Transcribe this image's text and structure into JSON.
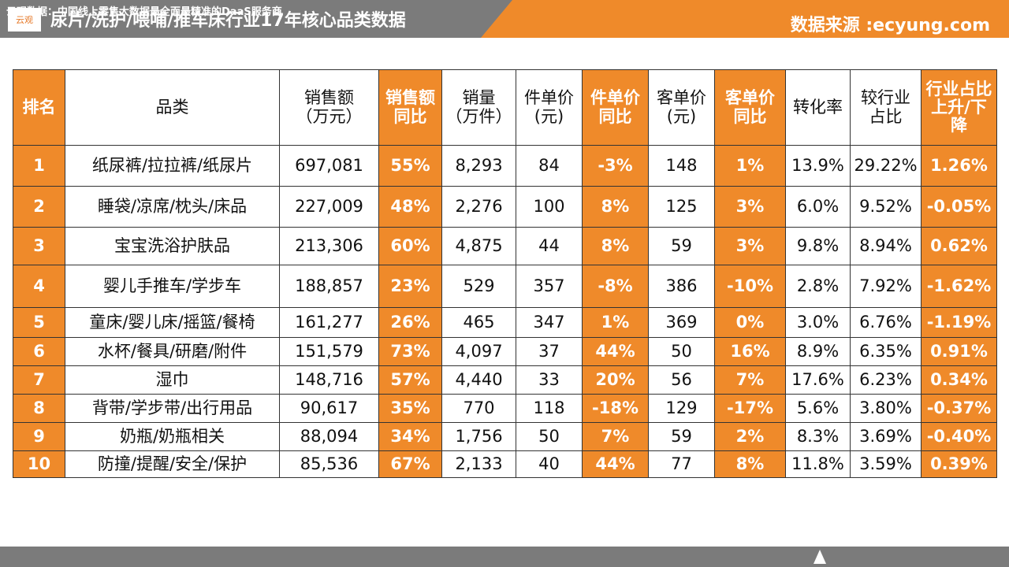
{
  "header": {
    "logo": "云观",
    "title": "尿片/洗护/喂哺/推车床行业17年核心品类数据",
    "source": "数据来源 :ecyung.com"
  },
  "table": {
    "columns": [
      "排名",
      "品类",
      "销售额\n（万元）",
      "销售额\n同比",
      "销量\n（万件）",
      "件单价\n(元)",
      "件单价\n同比",
      "客单价\n(元)",
      "客单价\n同比",
      "转化率",
      "较行业\n占比",
      "行业占比\n上升/下\n降"
    ],
    "rows": [
      [
        "1",
        "纸尿裤/拉拉裤/纸尿片",
        "697,081",
        "55%",
        "8,293",
        "84",
        "-3%",
        "148",
        "1%",
        "13.9%",
        "29.22%",
        "1.26%"
      ],
      [
        "2",
        "睡袋/凉席/枕头/床品",
        "227,009",
        "48%",
        "2,276",
        "100",
        "8%",
        "125",
        "3%",
        "6.0%",
        "9.52%",
        "-0.05%"
      ],
      [
        "3",
        "宝宝洗浴护肤品",
        "213,306",
        "60%",
        "4,875",
        "44",
        "8%",
        "59",
        "3%",
        "9.8%",
        "8.94%",
        "0.62%"
      ],
      [
        "4",
        "婴儿手推车/学步车",
        "188,857",
        "23%",
        "529",
        "357",
        "-8%",
        "386",
        "-10%",
        "2.8%",
        "7.92%",
        "-1.62%"
      ],
      [
        "5",
        "童床/婴儿床/摇篮/餐椅",
        "161,277",
        "26%",
        "465",
        "347",
        "1%",
        "369",
        "0%",
        "3.0%",
        "6.76%",
        "-1.19%"
      ],
      [
        "6",
        "水杯/餐具/研磨/附件",
        "151,579",
        "73%",
        "4,097",
        "37",
        "44%",
        "50",
        "16%",
        "8.9%",
        "6.35%",
        "0.91%"
      ],
      [
        "7",
        "湿巾",
        "148,716",
        "57%",
        "4,440",
        "33",
        "20%",
        "56",
        "7%",
        "17.6%",
        "6.23%",
        "0.34%"
      ],
      [
        "8",
        "背带/学步带/出行用品",
        "90,617",
        "35%",
        "770",
        "118",
        "-18%",
        "129",
        "-17%",
        "5.6%",
        "3.80%",
        "-0.37%"
      ],
      [
        "9",
        "奶瓶/奶瓶相关",
        "88,094",
        "34%",
        "1,756",
        "50",
        "7%",
        "59",
        "2%",
        "8.3%",
        "3.69%",
        "-0.40%"
      ],
      [
        "10",
        "防撞/提醒/安全/保护",
        "85,536",
        "67%",
        "2,133",
        "40",
        "44%",
        "77",
        "8%",
        "11.8%",
        "3.59%",
        "0.39%"
      ]
    ]
  },
  "footer": {
    "text": "云观数据：中国线上零售大数据最全面最精准的DaaS服务商"
  }
}
